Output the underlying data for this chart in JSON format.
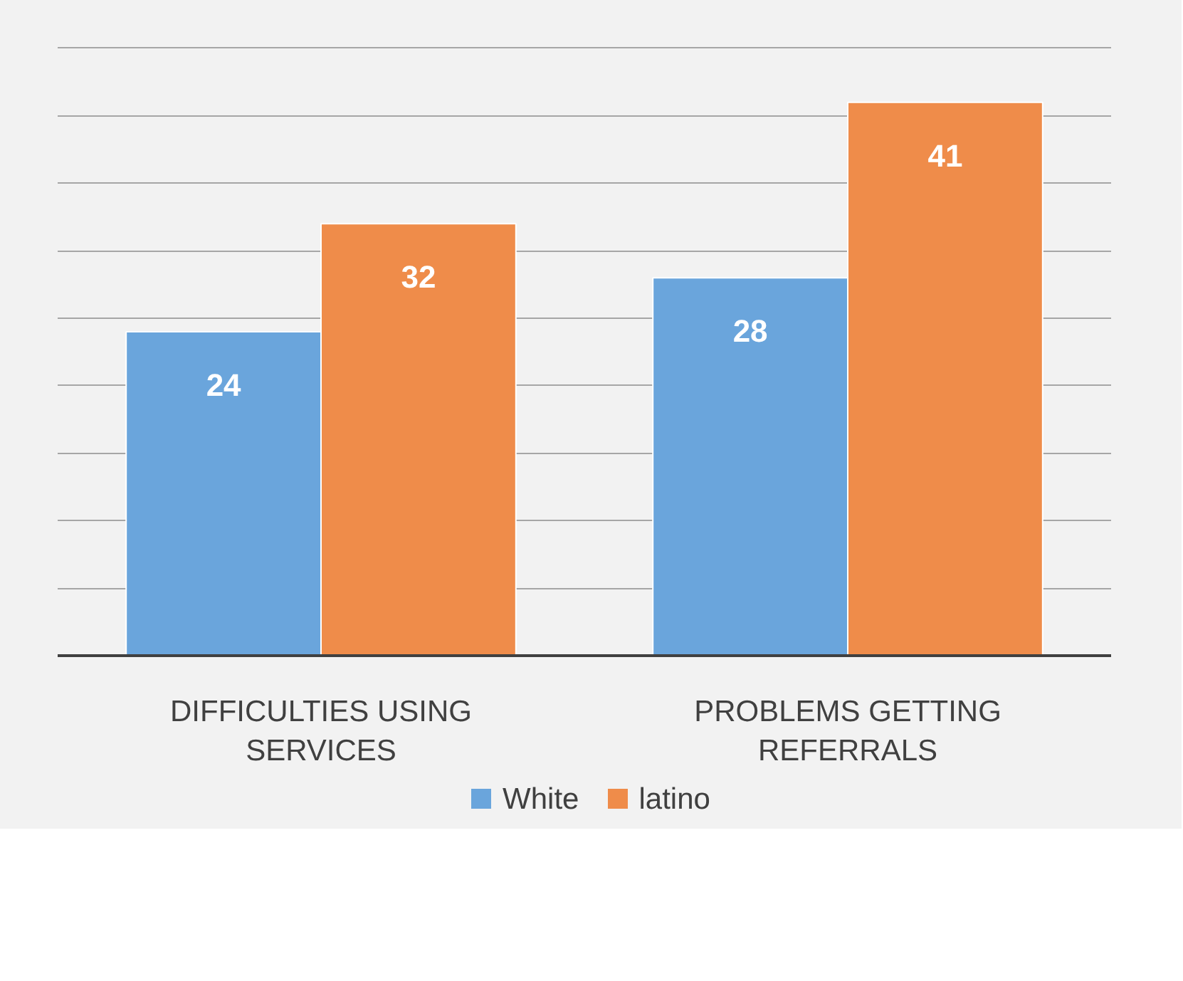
{
  "chart_data": {
    "type": "bar",
    "categories": [
      "DIFFICULTIES USING SERVICES",
      "PROBLEMS GETTING REFERRALS"
    ],
    "series": [
      {
        "name": "White",
        "color": "#6aa5dc",
        "values": [
          24,
          28
        ]
      },
      {
        "name": "latino",
        "color": "#ef8c4a",
        "values": [
          32,
          41
        ]
      }
    ],
    "yticks": [
      {
        "value": 0,
        "label": null
      },
      {
        "value": 5,
        "label": null
      },
      {
        "value": 10,
        "label": null
      },
      {
        "value": 15,
        "label": null
      },
      {
        "value": 20,
        "label": null
      },
      {
        "value": 25,
        "label": null
      },
      {
        "value": 30,
        "label": null
      },
      {
        "value": 35,
        "label": null
      },
      {
        "value": 40,
        "label": null
      },
      {
        "value": 45,
        "label": null
      }
    ],
    "grid": "y",
    "tick_labels": "x",
    "data_labels": true,
    "legend": "bottom"
  }
}
